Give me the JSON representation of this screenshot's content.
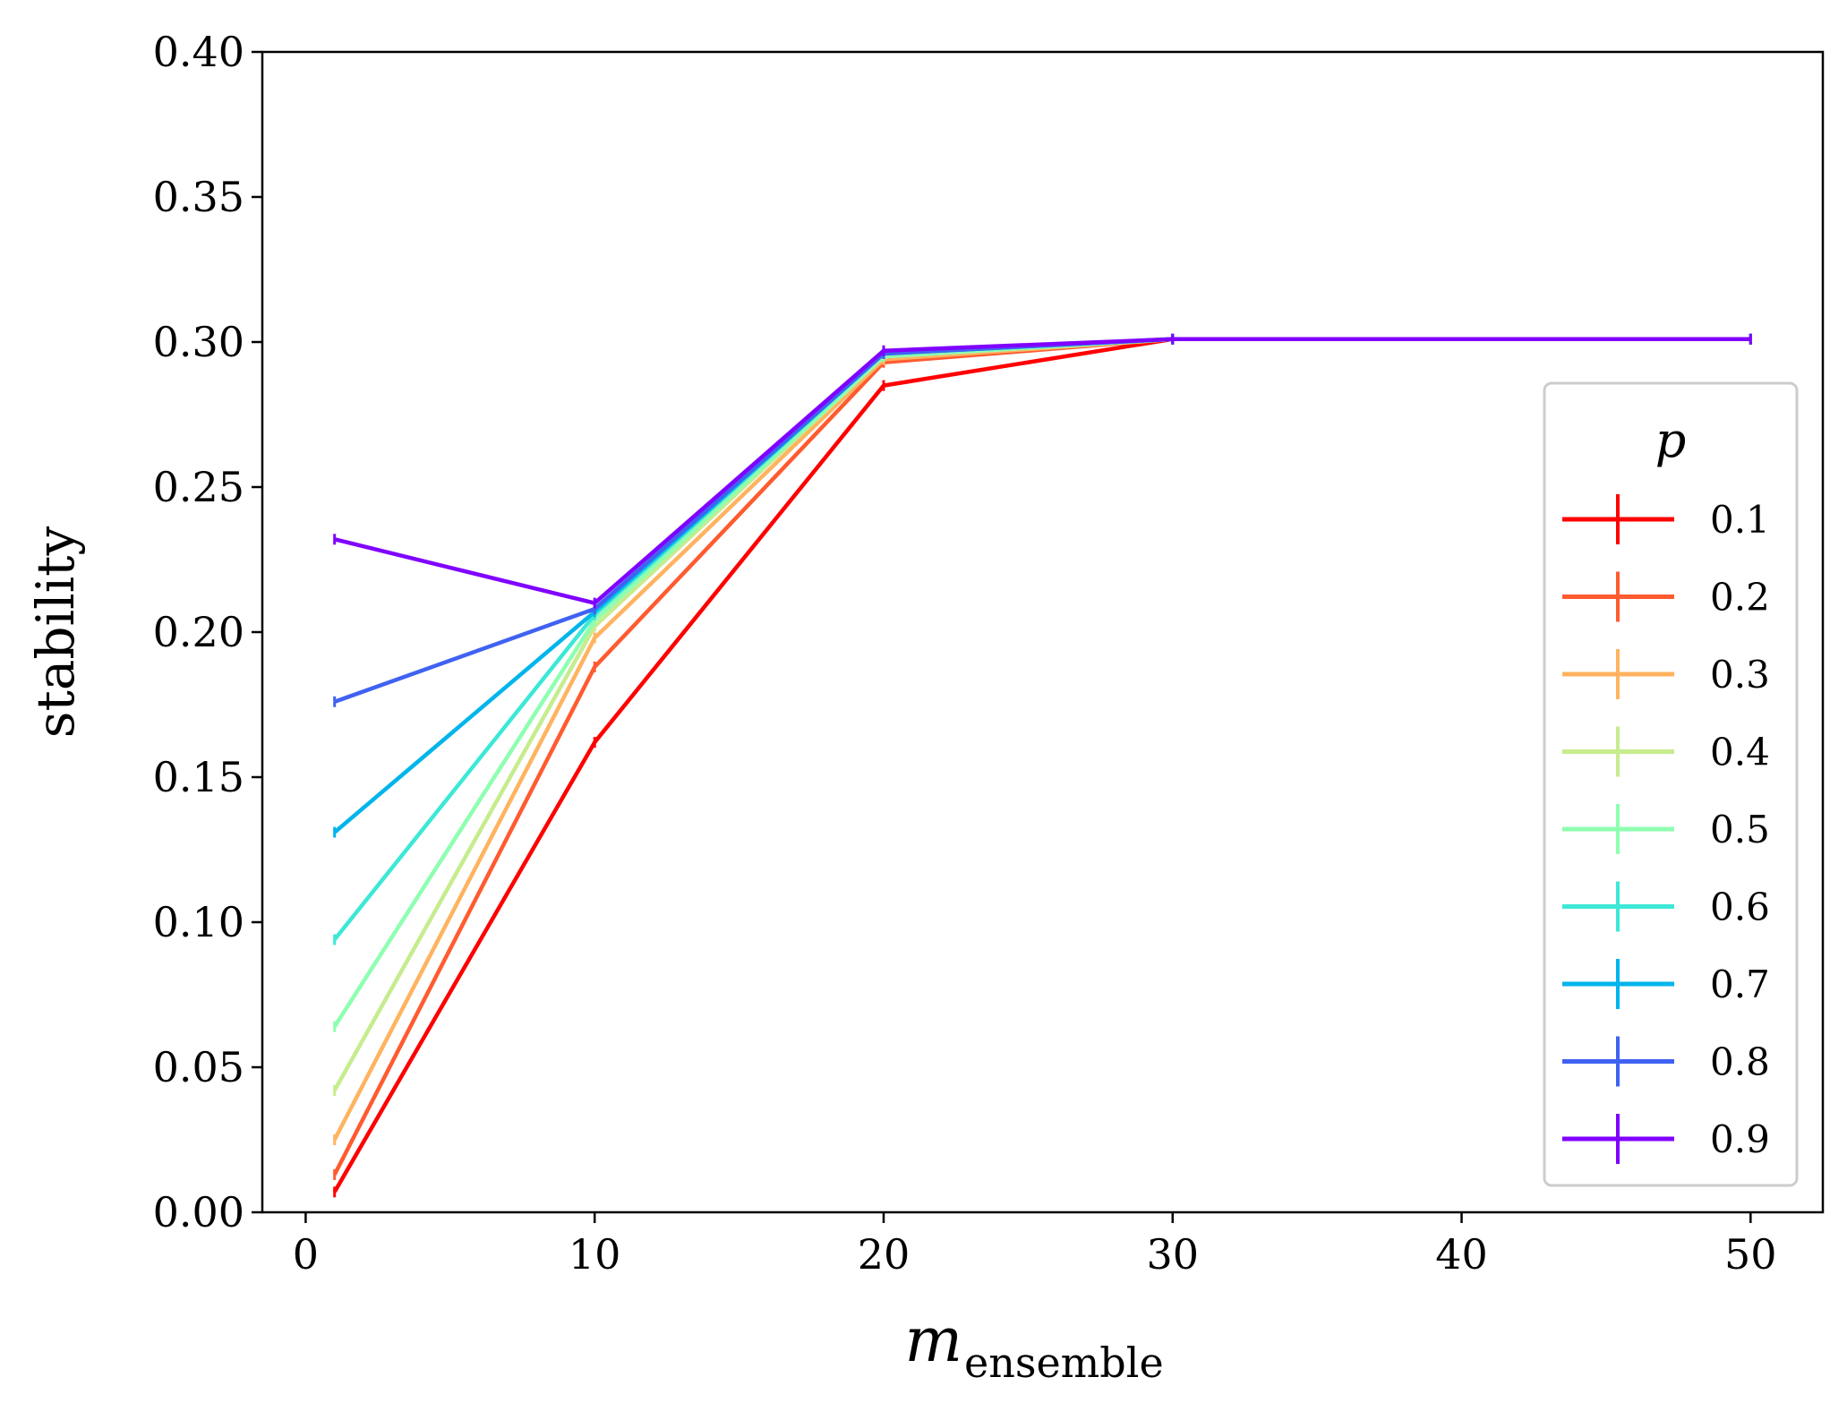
{
  "chart_data": {
    "type": "line",
    "title": "",
    "xlabel": "m",
    "xlabel_subscript": "ensemble",
    "ylabel": "stability",
    "xlim": [
      -1.5,
      52.5
    ],
    "ylim": [
      0.0,
      0.4
    ],
    "xticks": [
      0,
      10,
      20,
      30,
      40,
      50
    ],
    "xtick_labels": [
      "0",
      "10",
      "20",
      "30",
      "40",
      "50"
    ],
    "yticks": [
      0.0,
      0.05,
      0.1,
      0.15,
      0.2,
      0.25,
      0.3,
      0.35,
      0.4
    ],
    "ytick_labels": [
      "0.00",
      "0.05",
      "0.10",
      "0.15",
      "0.20",
      "0.25",
      "0.30",
      "0.35",
      "0.40"
    ],
    "legend_title": "p",
    "legend_position": "lower-right",
    "x": [
      1,
      10,
      20,
      30,
      50
    ],
    "series": [
      {
        "name": "0.1",
        "color": "#ff0000",
        "values": [
          0.007,
          0.162,
          0.285,
          0.301,
          0.301
        ]
      },
      {
        "name": "0.2",
        "color": "#ff5b30",
        "values": [
          0.013,
          0.188,
          0.293,
          0.301,
          0.301
        ]
      },
      {
        "name": "0.3",
        "color": "#ffb360",
        "values": [
          0.025,
          0.198,
          0.294,
          0.301,
          0.301
        ]
      },
      {
        "name": "0.4",
        "color": "#c6ec8e",
        "values": [
          0.042,
          0.202,
          0.295,
          0.301,
          0.301
        ]
      },
      {
        "name": "0.5",
        "color": "#8effb1",
        "values": [
          0.064,
          0.204,
          0.295,
          0.301,
          0.301
        ]
      },
      {
        "name": "0.6",
        "color": "#3de8d6",
        "values": [
          0.094,
          0.206,
          0.296,
          0.301,
          0.301
        ]
      },
      {
        "name": "0.7",
        "color": "#00b5eb",
        "values": [
          0.131,
          0.207,
          0.296,
          0.301,
          0.301
        ]
      },
      {
        "name": "0.8",
        "color": "#4062f3",
        "values": [
          0.176,
          0.208,
          0.296,
          0.301,
          0.301
        ]
      },
      {
        "name": "0.9",
        "color": "#8000ff",
        "values": [
          0.232,
          0.21,
          0.297,
          0.301,
          0.301
        ]
      }
    ]
  }
}
